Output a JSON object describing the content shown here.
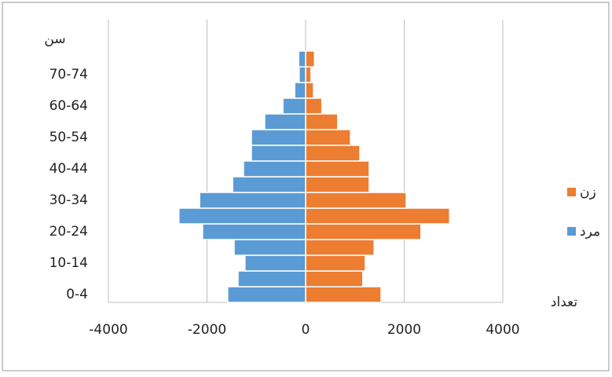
{
  "chart_data": {
    "type": "bar",
    "orientation": "horizontal",
    "stacked": true,
    "y_label": "سن",
    "x_label": "تعداد",
    "categories": [
      "0-4",
      null,
      "10-14",
      null,
      "20-24",
      null,
      "30-34",
      null,
      "40-44",
      null,
      "50-54",
      null,
      "60-64",
      null,
      "70-74",
      null
    ],
    "series": [
      {
        "name": "زن",
        "color": "#ed7d31",
        "values": [
          1530,
          1160,
          1210,
          1390,
          2340,
          2920,
          2040,
          1290,
          1290,
          1100,
          910,
          650,
          330,
          160,
          110,
          180
        ]
      },
      {
        "name": "مرد",
        "color": "#5b9bd5",
        "values": [
          -1580,
          -1370,
          -1230,
          -1450,
          -2090,
          -2570,
          -2150,
          -1480,
          -1260,
          -1100,
          -1100,
          -830,
          -460,
          -220,
          -130,
          -140
        ]
      }
    ],
    "xlim": [
      -4000,
      4000
    ],
    "xticks": [
      -4000,
      -2000,
      0,
      2000,
      4000
    ],
    "grid": true,
    "legend": "right"
  }
}
